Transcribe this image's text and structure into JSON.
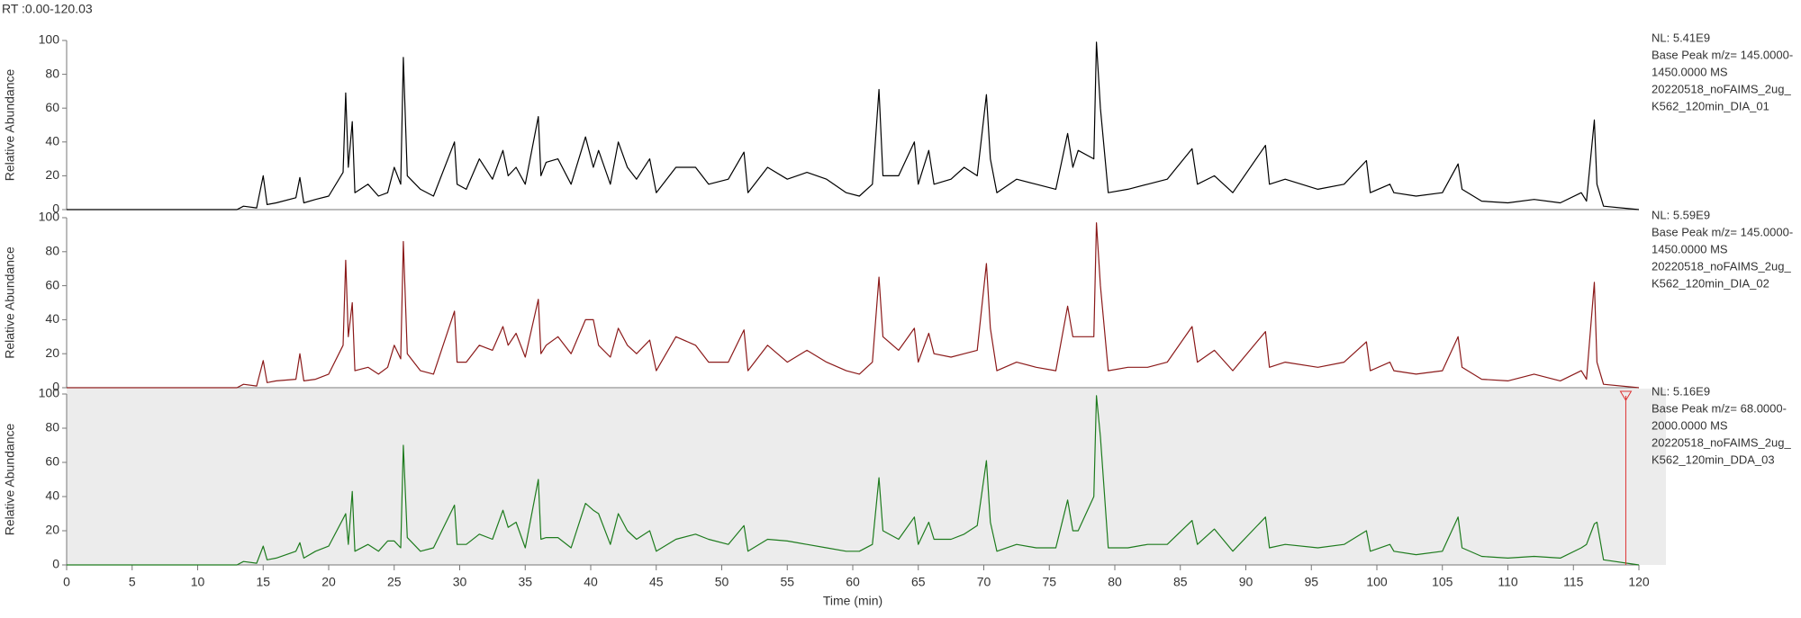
{
  "header": "RT :0.00-120.03",
  "chart_data": [
    {
      "type": "line",
      "ylabel": "Relative Abundance",
      "color": "#000000",
      "annotations": [
        "NL: 5.41E9",
        "Base Peak m/z= 145.0000-",
        "1450.0000 MS",
        "20220518_noFAIMS_2ug_",
        "K562_120min_DIA_01"
      ],
      "xlim": [
        0,
        120
      ],
      "ylim": [
        0,
        100
      ],
      "yticks": [
        0,
        20,
        40,
        60,
        80,
        100
      ],
      "x": [
        0,
        13,
        13.5,
        14.5,
        15,
        15.3,
        16,
        17.5,
        17.8,
        18.1,
        19,
        20,
        21.1,
        21.3,
        21.5,
        21.8,
        22,
        23,
        23.8,
        24.5,
        25,
        25.5,
        25.7,
        26,
        27,
        28,
        29.6,
        29.8,
        30.5,
        31.5,
        32.5,
        33.3,
        33.7,
        34.3,
        35,
        36,
        36.2,
        36.6,
        37.5,
        38.5,
        39.6,
        40.2,
        40.6,
        41.5,
        42.1,
        42.8,
        43.5,
        44.5,
        45,
        46.5,
        48,
        49,
        50.5,
        51.7,
        52,
        53.5,
        55,
        56.5,
        58,
        59.5,
        60.5,
        61.5,
        62,
        62.3,
        63.5,
        64.7,
        65,
        65.8,
        66.2,
        67.5,
        68.5,
        69.5,
        70.2,
        70.5,
        71,
        72.5,
        74,
        75.5,
        76.4,
        76.8,
        77.2,
        78.4,
        78.6,
        78.9,
        79.5,
        81,
        82.5,
        84,
        85.9,
        86.3,
        87.6,
        89,
        91.5,
        91.8,
        93,
        95.5,
        97.5,
        99.2,
        99.5,
        101,
        101.3,
        103,
        105,
        106.2,
        106.5,
        108,
        110,
        112,
        114,
        115.6,
        116,
        116.6,
        116.8,
        117.3,
        120
      ],
      "values": [
        0,
        0,
        2,
        1,
        20,
        3,
        4,
        7,
        19,
        4,
        6,
        8,
        22,
        69,
        25,
        52,
        10,
        15,
        8,
        10,
        25,
        15,
        90,
        20,
        12,
        8,
        40,
        15,
        12,
        30,
        18,
        35,
        20,
        25,
        15,
        55,
        20,
        28,
        30,
        15,
        43,
        25,
        35,
        15,
        40,
        25,
        18,
        30,
        10,
        25,
        25,
        15,
        18,
        34,
        10,
        25,
        18,
        22,
        18,
        10,
        8,
        15,
        71,
        20,
        20,
        40,
        15,
        35,
        15,
        18,
        25,
        20,
        68,
        30,
        10,
        18,
        15,
        12,
        45,
        25,
        35,
        30,
        99,
        60,
        10,
        12,
        15,
        18,
        36,
        15,
        20,
        10,
        38,
        15,
        18,
        12,
        15,
        29,
        10,
        15,
        10,
        8,
        10,
        27,
        12,
        5,
        4,
        6,
        4,
        10,
        5,
        53,
        15,
        2,
        0
      ]
    },
    {
      "type": "line",
      "ylabel": "Relative Abundance",
      "color": "#8b1a1a",
      "annotations": [
        "NL: 5.59E9",
        "Base Peak m/z= 145.0000-",
        "1450.0000 MS",
        "20220518_noFAIMS_2ug_",
        "K562_120min_DIA_02"
      ],
      "xlim": [
        0,
        120
      ],
      "ylim": [
        0,
        100
      ],
      "yticks": [
        0,
        20,
        40,
        60,
        80,
        100
      ],
      "x": [
        0,
        13,
        13.5,
        14.5,
        15,
        15.3,
        16,
        17.5,
        17.8,
        18.1,
        19,
        20,
        21.1,
        21.3,
        21.5,
        21.8,
        22,
        23,
        23.8,
        24.5,
        25,
        25.5,
        25.7,
        26,
        27,
        28,
        29.6,
        29.8,
        30.5,
        31.5,
        32.5,
        33.3,
        33.7,
        34.3,
        35,
        36,
        36.2,
        36.6,
        37.5,
        38.5,
        39.6,
        40.2,
        40.6,
        41.5,
        42.1,
        42.8,
        43.5,
        44.5,
        45,
        46.5,
        48,
        49,
        50.5,
        51.7,
        52,
        53.5,
        55,
        56.5,
        58,
        59.5,
        60.5,
        61.5,
        62,
        62.3,
        63.5,
        64.7,
        65,
        65.8,
        66.2,
        67.5,
        68.5,
        69.5,
        70.2,
        70.5,
        71,
        72.5,
        74,
        75.5,
        76.4,
        76.8,
        77.2,
        78.4,
        78.6,
        78.9,
        79.5,
        81,
        82.5,
        84,
        85.9,
        86.3,
        87.6,
        89,
        91.5,
        91.8,
        93,
        95.5,
        97.5,
        99.2,
        99.5,
        101,
        101.3,
        103,
        105,
        106.2,
        106.5,
        108,
        110,
        112,
        114,
        115.6,
        116,
        116.6,
        116.8,
        117.3,
        120
      ],
      "values": [
        0,
        0,
        2,
        1,
        16,
        3,
        4,
        5,
        20,
        4,
        5,
        8,
        25,
        75,
        30,
        50,
        10,
        12,
        8,
        12,
        25,
        17,
        86,
        20,
        10,
        8,
        45,
        15,
        15,
        25,
        22,
        36,
        25,
        32,
        18,
        52,
        20,
        25,
        30,
        20,
        40,
        40,
        25,
        18,
        35,
        25,
        20,
        28,
        10,
        30,
        25,
        15,
        15,
        34,
        10,
        25,
        15,
        22,
        15,
        10,
        8,
        15,
        65,
        30,
        22,
        35,
        15,
        32,
        20,
        18,
        20,
        22,
        73,
        35,
        10,
        15,
        12,
        10,
        48,
        30,
        30,
        30,
        97,
        60,
        10,
        12,
        12,
        15,
        36,
        15,
        22,
        10,
        33,
        12,
        15,
        12,
        15,
        27,
        10,
        15,
        10,
        8,
        10,
        30,
        12,
        5,
        4,
        8,
        4,
        10,
        5,
        62,
        15,
        2,
        0
      ]
    },
    {
      "type": "line",
      "ylabel": "Relative Abundance",
      "color": "#1e7b1e",
      "background": "#ececec",
      "cursor_x": 119,
      "annotations": [
        "NL: 5.16E9",
        "Base Peak m/z= 68.0000-",
        "2000.0000 MS",
        "20220518_noFAIMS_2ug_",
        "K562_120min_DDA_03"
      ],
      "xlabel": "Time (min)",
      "xlim": [
        0,
        120
      ],
      "ylim": [
        0,
        100
      ],
      "yticks": [
        0,
        20,
        40,
        60,
        80,
        100
      ],
      "xticks": [
        0,
        5,
        10,
        15,
        20,
        25,
        30,
        35,
        40,
        45,
        50,
        55,
        60,
        65,
        70,
        75,
        80,
        85,
        90,
        95,
        100,
        105,
        110,
        115,
        120
      ],
      "x": [
        0,
        13,
        13.5,
        14.5,
        15,
        15.3,
        16,
        17.5,
        17.8,
        18.1,
        19,
        20,
        21.1,
        21.3,
        21.5,
        21.8,
        22,
        23,
        23.8,
        24.5,
        25,
        25.5,
        25.7,
        26,
        27,
        28,
        29.6,
        29.8,
        30.5,
        31.5,
        32.5,
        33.3,
        33.7,
        34.3,
        35,
        36,
        36.2,
        36.6,
        37.5,
        38.5,
        39.6,
        40.2,
        40.6,
        41.5,
        42.1,
        42.8,
        43.5,
        44.5,
        45,
        46.5,
        48,
        49,
        50.5,
        51.7,
        52,
        53.5,
        55,
        56.5,
        58,
        59.5,
        60.5,
        61.5,
        62,
        62.3,
        63.5,
        64.7,
        65,
        65.8,
        66.2,
        67.5,
        68.5,
        69.5,
        70.2,
        70.5,
        71,
        72.5,
        74,
        75.5,
        76.4,
        76.8,
        77.2,
        78.4,
        78.6,
        78.9,
        79.5,
        81,
        82.5,
        84,
        85.9,
        86.3,
        87.6,
        89,
        91.5,
        91.8,
        93,
        95.5,
        97.5,
        99.2,
        99.5,
        101,
        101.3,
        103,
        105,
        106.2,
        106.5,
        108,
        110,
        112,
        114,
        115.6,
        116,
        116.6,
        116.8,
        117.3,
        120
      ],
      "values": [
        0,
        0,
        2,
        1,
        11,
        3,
        4,
        8,
        13,
        4,
        8,
        11,
        27,
        30,
        12,
        43,
        8,
        12,
        8,
        14,
        14,
        10,
        70,
        16,
        8,
        10,
        35,
        12,
        12,
        18,
        15,
        32,
        22,
        25,
        10,
        50,
        15,
        16,
        16,
        10,
        36,
        32,
        30,
        12,
        30,
        20,
        15,
        20,
        8,
        15,
        18,
        15,
        12,
        23,
        8,
        15,
        14,
        12,
        10,
        8,
        8,
        12,
        51,
        20,
        15,
        28,
        12,
        25,
        15,
        15,
        18,
        23,
        61,
        25,
        8,
        12,
        10,
        10,
        38,
        20,
        20,
        40,
        99,
        75,
        10,
        10,
        12,
        12,
        26,
        12,
        21,
        8,
        28,
        10,
        12,
        10,
        12,
        20,
        8,
        12,
        8,
        6,
        8,
        28,
        10,
        5,
        4,
        5,
        4,
        10,
        12,
        24,
        25,
        3,
        0
      ]
    }
  ]
}
